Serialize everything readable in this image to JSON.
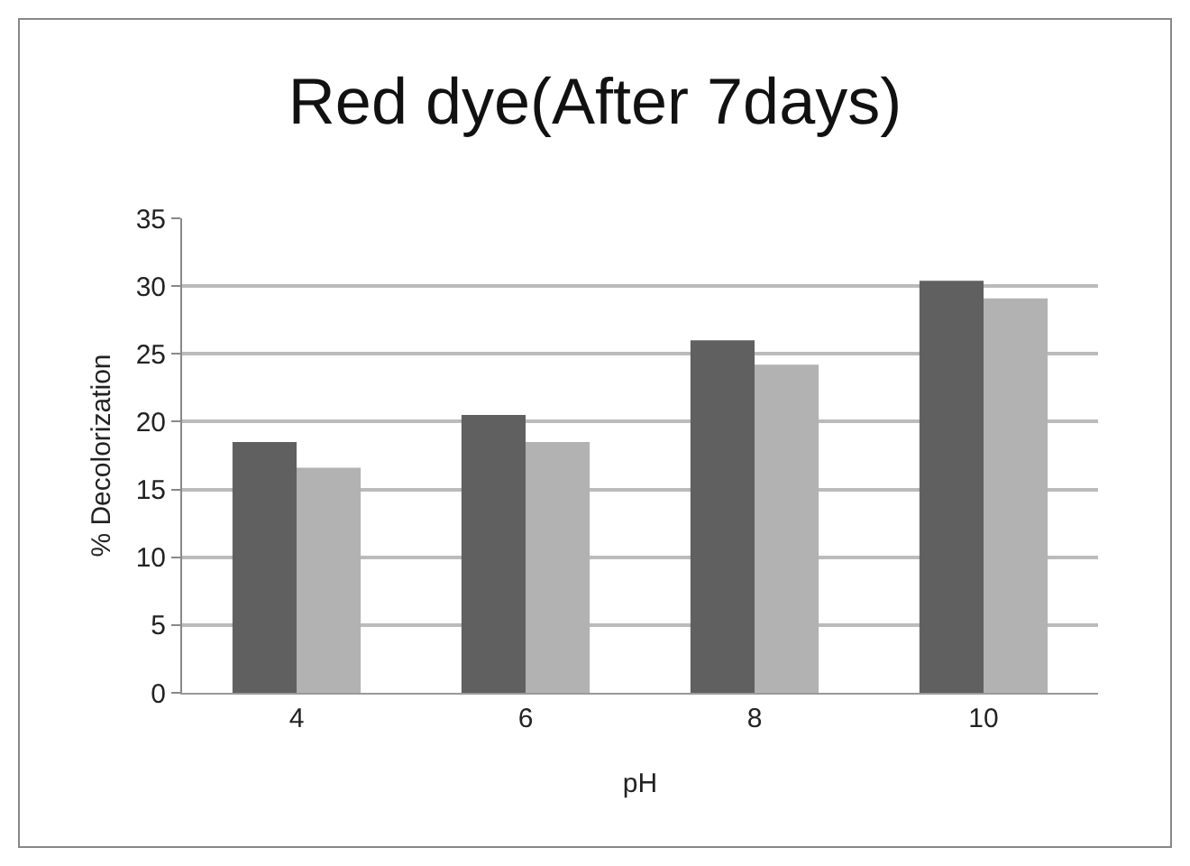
{
  "chart_data": {
    "type": "bar",
    "title": "Red dye(After 7days)",
    "xlabel": "pH",
    "ylabel": "% Decolorization",
    "categories": [
      "4",
      "6",
      "8",
      "10"
    ],
    "series": [
      {
        "color": "#606060",
        "values": [
          18.5,
          20.5,
          26.0,
          30.4
        ]
      },
      {
        "color": "#b2b2b2",
        "values": [
          16.6,
          18.5,
          24.2,
          29.1
        ]
      }
    ],
    "ylim": [
      0,
      35
    ],
    "yticks": [
      0,
      5,
      10,
      15,
      20,
      25,
      30,
      35
    ],
    "grid": "y"
  }
}
